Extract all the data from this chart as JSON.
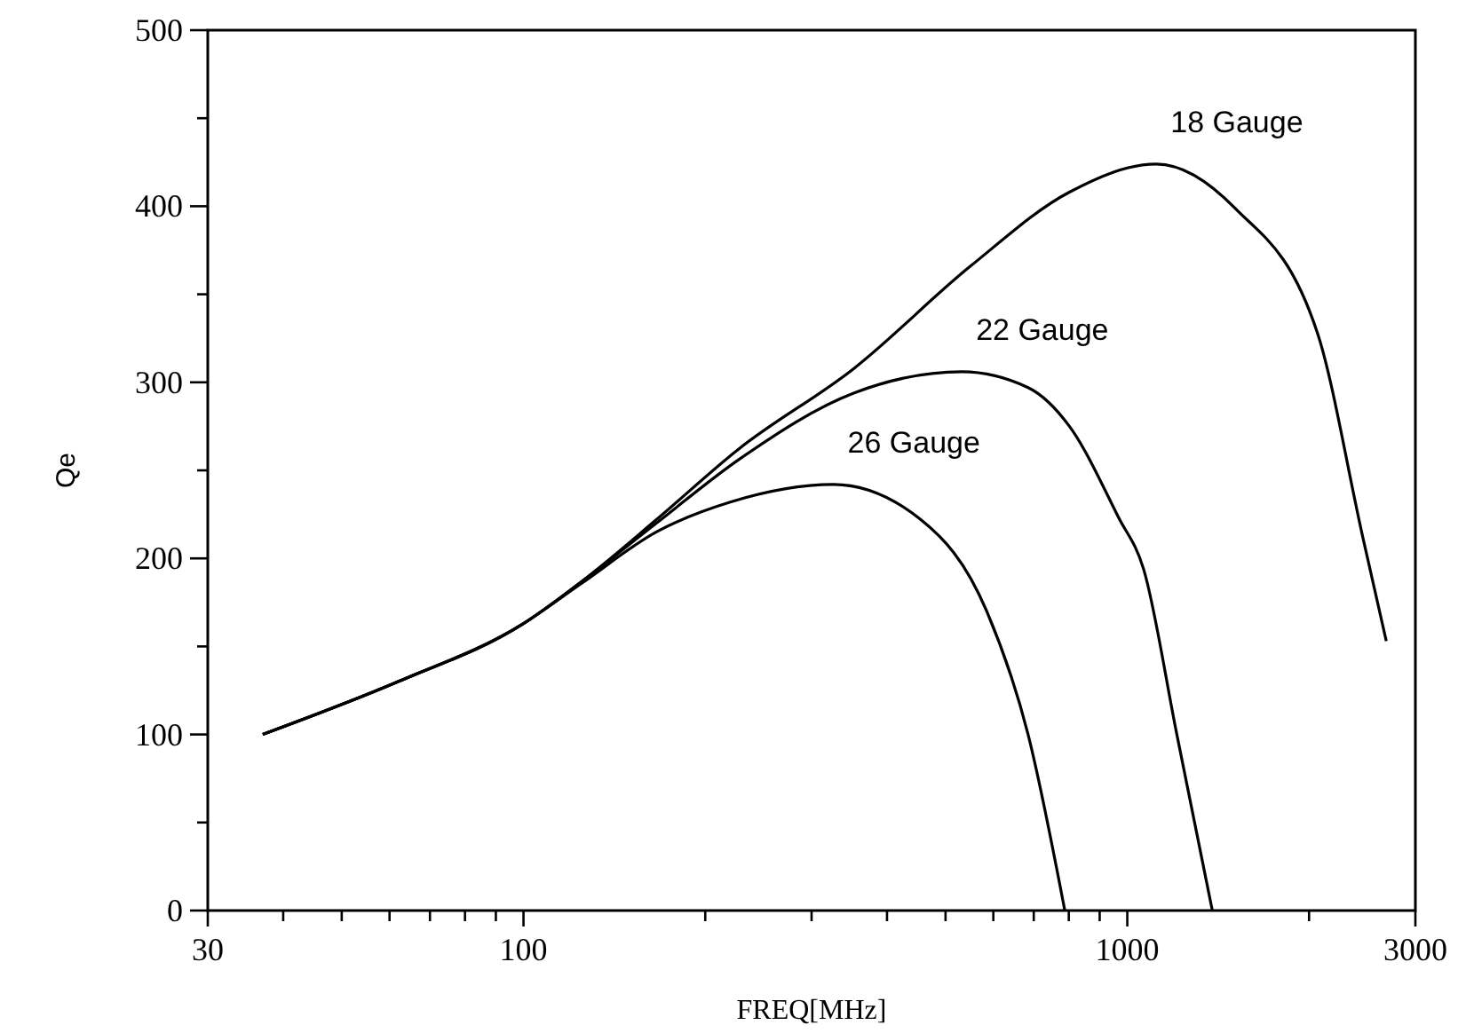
{
  "chart_data": {
    "type": "line",
    "xlabel": "FREQ[MHz]",
    "ylabel": "Qe",
    "log": "x",
    "xlim": [
      30,
      3000
    ],
    "ylim": [
      0,
      500
    ],
    "xticks": [
      30,
      {
        "value": 40,
        "label": null
      },
      {
        "value": 50,
        "label": null
      },
      {
        "value": 60,
        "label": null
      },
      {
        "value": 70,
        "label": null
      },
      {
        "value": 80,
        "label": null
      },
      {
        "value": 90,
        "label": null
      },
      100,
      {
        "value": 200,
        "label": null
      },
      {
        "value": 300,
        "label": null
      },
      {
        "value": 400,
        "label": null
      },
      {
        "value": 500,
        "label": null
      },
      {
        "value": 600,
        "label": null
      },
      {
        "value": 700,
        "label": null
      },
      {
        "value": 800,
        "label": null
      },
      {
        "value": 900,
        "label": null
      },
      1000,
      {
        "value": 2000,
        "label": null
      },
      3000
    ],
    "yticks": [
      0,
      {
        "value": 50,
        "label": null
      },
      100,
      {
        "value": 150,
        "label": null
      },
      200,
      {
        "value": 250,
        "label": null
      },
      300,
      {
        "value": 350,
        "label": null
      },
      400,
      {
        "value": 450,
        "label": null
      },
      500
    ],
    "grid": false,
    "legend": false,
    "marker": "none",
    "line_style": "solid",
    "series": [
      {
        "name": "18 Gauge",
        "color": "#000000",
        "x": [
          37,
          62,
          100,
          125,
          166,
          227,
          353,
          550,
          802,
          1117,
          1507,
          2065,
          2455,
          2685
        ],
        "values": [
          100,
          130,
          163,
          187,
          222,
          262,
          308,
          366,
          408,
          424,
          399,
          328,
          212,
          153
        ]
      },
      {
        "name": "22 Gauge",
        "color": "#000000",
        "x": [
          37,
          62,
          100,
          125,
          166,
          227,
          353,
          532,
          685,
          802,
          968,
          1064,
          1208,
          1383
        ],
        "values": [
          100,
          130,
          163,
          187,
          220,
          256,
          294,
          306,
          297,
          275,
          223,
          194,
          100,
          0
        ]
      },
      {
        "name": "26 Gauge",
        "color": "#000000",
        "x": [
          37,
          62,
          100,
          125,
          166,
          220,
          326,
          455,
          585,
          685,
          788
        ],
        "values": [
          100,
          130,
          163,
          186,
          215,
          232,
          242,
          222,
          170,
          100,
          0
        ]
      }
    ]
  }
}
